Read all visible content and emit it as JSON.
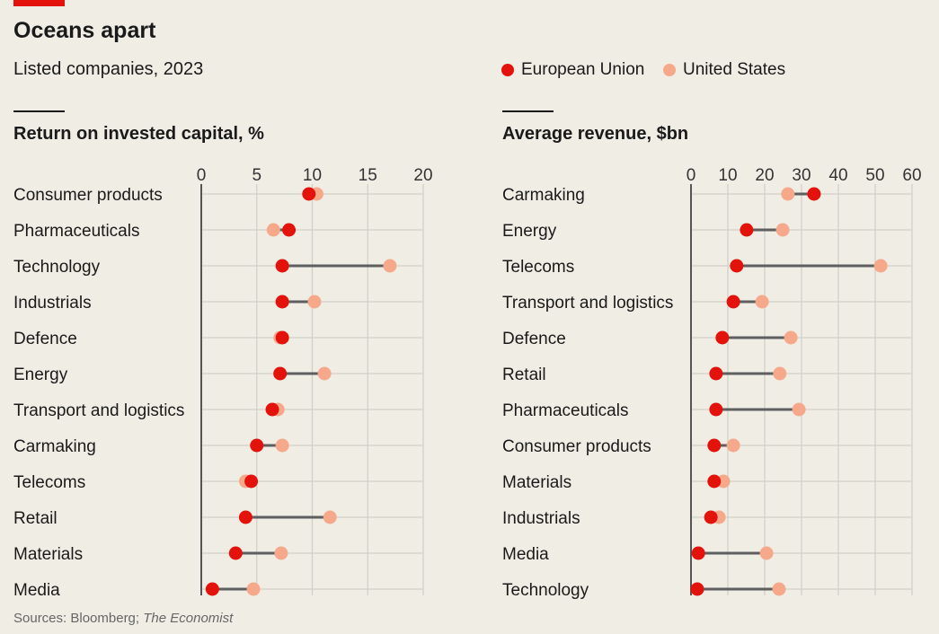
{
  "title": "Oceans apart",
  "subtitle": "Listed companies, 2023",
  "source": "Sources: Bloomberg; ",
  "source_italic": "The Economist",
  "colors": {
    "eu": "#e3120b",
    "us": "#f6a98a",
    "connector": "#5e5e5e",
    "grid": "#d2d0ca",
    "axis": "#555555"
  },
  "legend": [
    {
      "name": "European Union",
      "color": "#e3120b"
    },
    {
      "name": "United States",
      "color": "#f6a98a"
    }
  ],
  "chart_data": [
    {
      "type": "dumbbell",
      "title": "Return on invested capital, %",
      "xlim": [
        0,
        20
      ],
      "ticks": [
        0,
        5,
        10,
        15,
        20
      ],
      "grid": true,
      "categories": [
        "Consumer products",
        "Pharmaceuticals",
        "Technology",
        "Industrials",
        "Defence",
        "Energy",
        "Transport and logistics",
        "Carmaking",
        "Telecoms",
        "Retail",
        "Materials",
        "Media"
      ],
      "series": [
        {
          "name": "European Union",
          "values": [
            9.7,
            7.9,
            7.3,
            7.3,
            7.3,
            7.1,
            6.4,
            5.0,
            4.5,
            4.0,
            3.1,
            1.0
          ]
        },
        {
          "name": "United States",
          "values": [
            10.4,
            6.5,
            17.0,
            10.2,
            7.1,
            11.1,
            6.9,
            7.3,
            4.0,
            11.6,
            7.2,
            4.7
          ]
        }
      ]
    },
    {
      "type": "dumbbell",
      "title": "Average revenue, $bn",
      "xlim": [
        0,
        60
      ],
      "ticks": [
        0,
        10,
        20,
        30,
        40,
        50,
        60
      ],
      "grid": true,
      "categories": [
        "Carmaking",
        "Energy",
        "Telecoms",
        "Transport and logistics",
        "Defence",
        "Retail",
        "Pharmaceuticals",
        "Consumer products",
        "Materials",
        "Industrials",
        "Media",
        "Technology"
      ],
      "series": [
        {
          "name": "European Union",
          "values": [
            33.4,
            15.1,
            12.4,
            11.5,
            8.5,
            6.8,
            6.8,
            6.3,
            6.3,
            5.4,
            2.0,
            1.7
          ]
        },
        {
          "name": "United States",
          "values": [
            26.3,
            24.9,
            51.5,
            19.3,
            27.1,
            24.1,
            29.3,
            11.5,
            8.8,
            7.6,
            20.5,
            23.9
          ]
        }
      ]
    }
  ]
}
